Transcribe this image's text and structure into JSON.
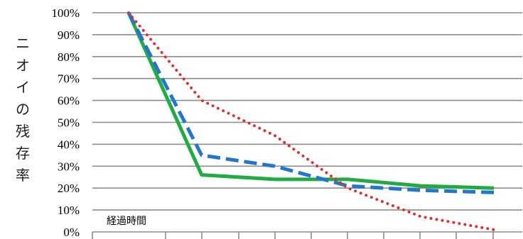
{
  "chart_data": {
    "type": "line",
    "ylabel": "ニオイの残存率",
    "annotation": "経過時間",
    "y_ticks": [
      "0%",
      "10%",
      "20%",
      "30%",
      "40%",
      "50%",
      "60%",
      "70%",
      "80%",
      "90%",
      "100%"
    ],
    "ylim": [
      0,
      100
    ],
    "x": [
      0,
      1,
      2,
      3,
      4,
      5,
      6,
      7,
      8,
      9,
      10
    ],
    "grid": true,
    "legend": "none",
    "series": [
      {
        "color": "#22aa44",
        "style": "solid",
        "values": [
          100,
          26,
          24,
          24,
          21,
          20
        ],
        "x": [
          0,
          2,
          4,
          6,
          8,
          10
        ]
      },
      {
        "color": "#2277cc",
        "style": "dashed",
        "values": [
          100,
          35,
          30,
          21,
          19,
          18
        ],
        "x": [
          0,
          2,
          4,
          6,
          8,
          10
        ]
      },
      {
        "color": "#e03030",
        "style": "dotted",
        "values": [
          100,
          60,
          44,
          20,
          7,
          1
        ],
        "x": [
          0,
          2,
          4,
          6,
          8,
          10
        ]
      }
    ]
  }
}
